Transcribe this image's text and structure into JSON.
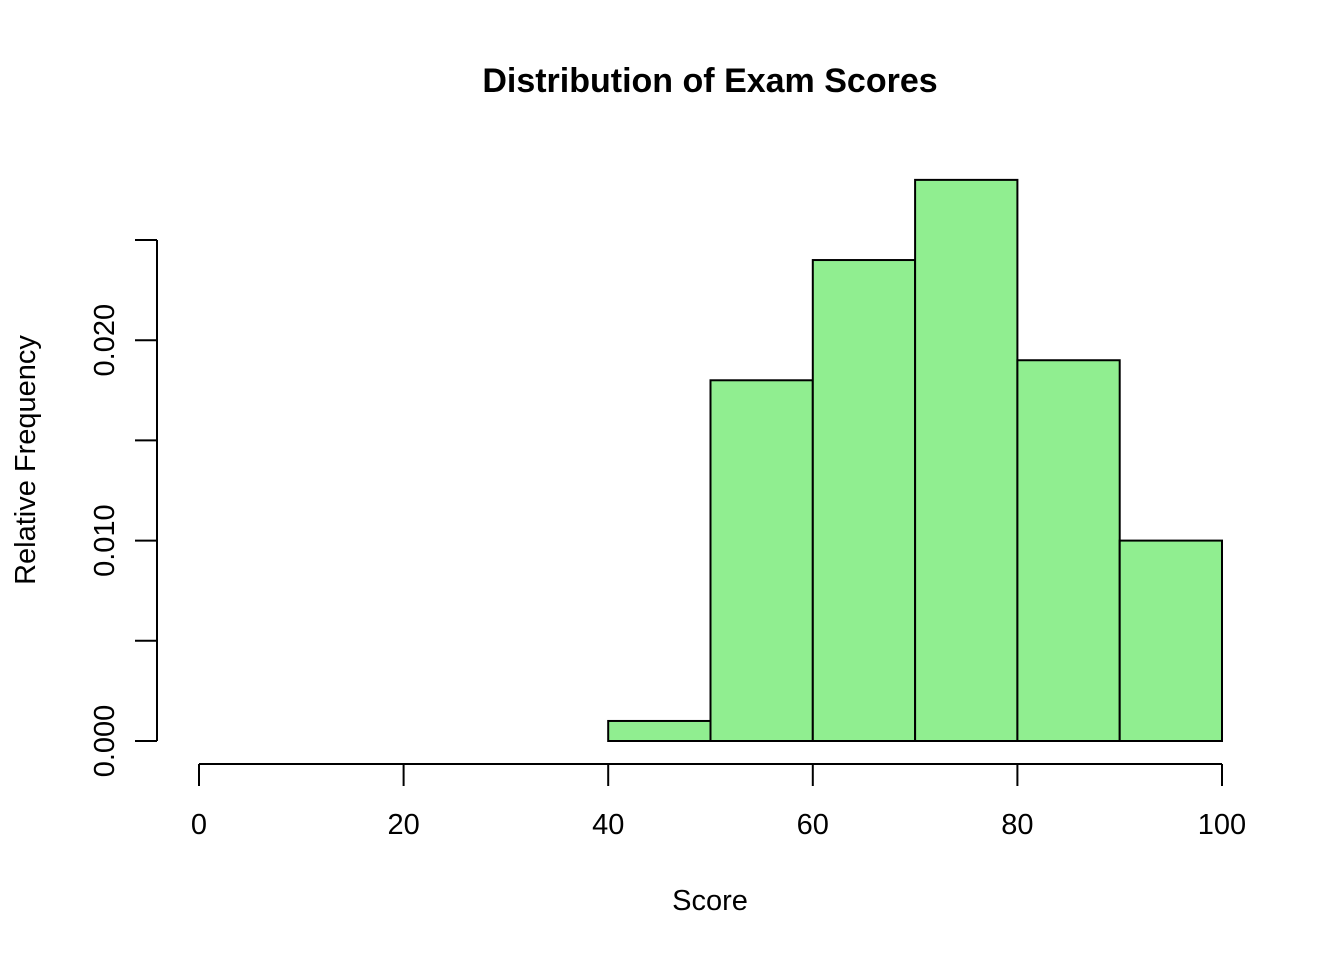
{
  "chart_data": {
    "type": "bar",
    "title": "Distribution of Exam Scores",
    "xlabel": "Score",
    "ylabel": "Relative Frequency",
    "bin_edges": [
      0,
      10,
      20,
      30,
      40,
      50,
      60,
      70,
      80,
      90,
      100
    ],
    "values": [
      0.0,
      0.0,
      0.0,
      0.0,
      0.001,
      0.018,
      0.024,
      0.028,
      0.019,
      0.01
    ],
    "xlim": [
      0,
      100
    ],
    "ylim": [
      0,
      0.025
    ],
    "x_ticks": [
      "0",
      "20",
      "40",
      "60",
      "80",
      "100"
    ],
    "y_ticks": [
      "0.000",
      "0.010",
      "0.020"
    ],
    "y_minor_ticks": [
      0.005,
      0.015,
      0.025
    ],
    "bar_color": "#90ee90",
    "border_color": "#000000",
    "grid": false,
    "legend": "none"
  }
}
